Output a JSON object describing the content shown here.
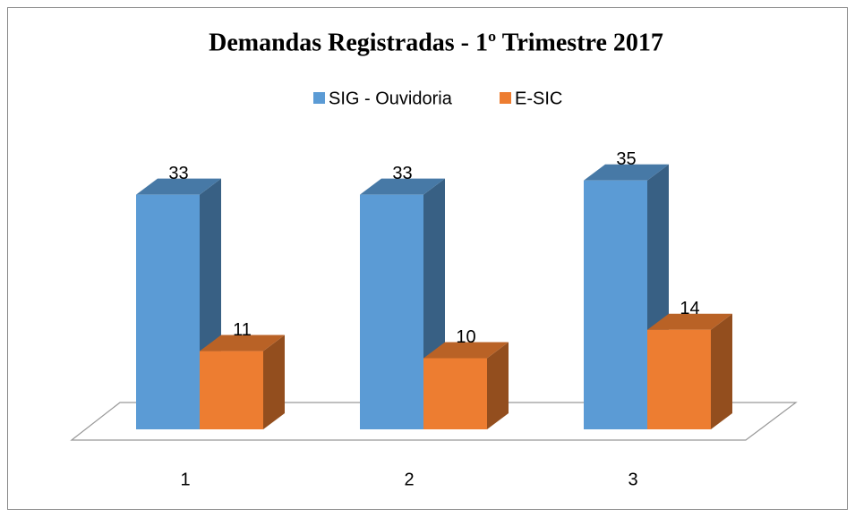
{
  "chart_data": {
    "type": "bar3d",
    "title": "Demandas Registradas - 1º Trimestre 2017",
    "categories": [
      "1",
      "2",
      "3"
    ],
    "series": [
      {
        "name": "SIG - Ouvidoria",
        "color": "#5b9bd5",
        "values": [
          33,
          33,
          35
        ]
      },
      {
        "name": "E-SIC",
        "color": "#ed7d31",
        "values": [
          11,
          10,
          14
        ]
      }
    ],
    "ylim": [
      0,
      40
    ]
  }
}
